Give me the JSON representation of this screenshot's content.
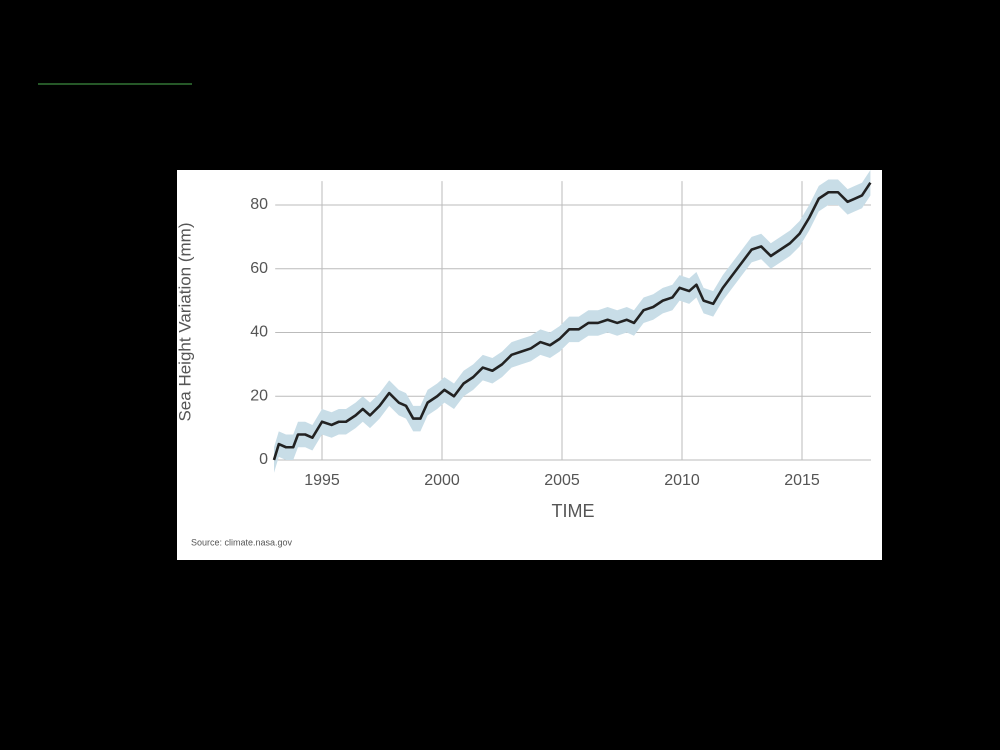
{
  "chart_data": {
    "type": "line",
    "y_label": "Sea Height Variation (mm)",
    "x_label": "TIME",
    "source": "Source: climate.nasa.gov",
    "x": [
      1993.0,
      1993.2,
      1993.5,
      1993.8,
      1994.0,
      1994.3,
      1994.6,
      1995.0,
      1995.4,
      1995.7,
      1996.0,
      1996.4,
      1996.7,
      1997.0,
      1997.4,
      1997.8,
      1998.2,
      1998.5,
      1998.8,
      1999.1,
      1999.4,
      1999.8,
      2000.1,
      2000.5,
      2000.9,
      2001.3,
      2001.7,
      2002.1,
      2002.5,
      2002.9,
      2003.3,
      2003.7,
      2004.1,
      2004.5,
      2004.9,
      2005.3,
      2005.7,
      2006.1,
      2006.5,
      2006.9,
      2007.3,
      2007.7,
      2008.0,
      2008.4,
      2008.8,
      2009.2,
      2009.6,
      2009.9,
      2010.3,
      2010.6,
      2010.9,
      2011.3,
      2011.7,
      2012.1,
      2012.5,
      2012.9,
      2013.3,
      2013.7,
      2014.1,
      2014.5,
      2014.9,
      2015.3,
      2015.7,
      2016.1,
      2016.5,
      2016.9,
      2017.2,
      2017.5,
      2017.85
    ],
    "series": [
      {
        "color": "#222222",
        "band_color": "#c8dde7",
        "error": 4,
        "values": [
          0,
          5,
          4,
          4,
          8,
          8,
          7,
          12,
          11,
          12,
          12,
          14,
          16,
          14,
          17,
          21,
          18,
          17,
          13,
          13,
          18,
          20,
          22,
          20,
          24,
          26,
          29,
          28,
          30,
          33,
          34,
          35,
          37,
          36,
          38,
          41,
          41,
          43,
          43,
          44,
          43,
          44,
          43,
          47,
          48,
          50,
          51,
          54,
          53,
          55,
          50,
          49,
          54,
          58,
          62,
          66,
          67,
          64,
          66,
          68,
          71,
          76,
          82,
          84,
          84,
          81,
          82,
          83,
          87
        ]
      }
    ],
    "xlim": [
      1992.8,
      2018.0
    ],
    "xticks": [
      1995,
      2000,
      2005,
      2010,
      2015
    ],
    "ylim": [
      0,
      87.5
    ],
    "yticks": [
      0,
      20,
      40,
      60,
      80
    ],
    "grid": true
  }
}
